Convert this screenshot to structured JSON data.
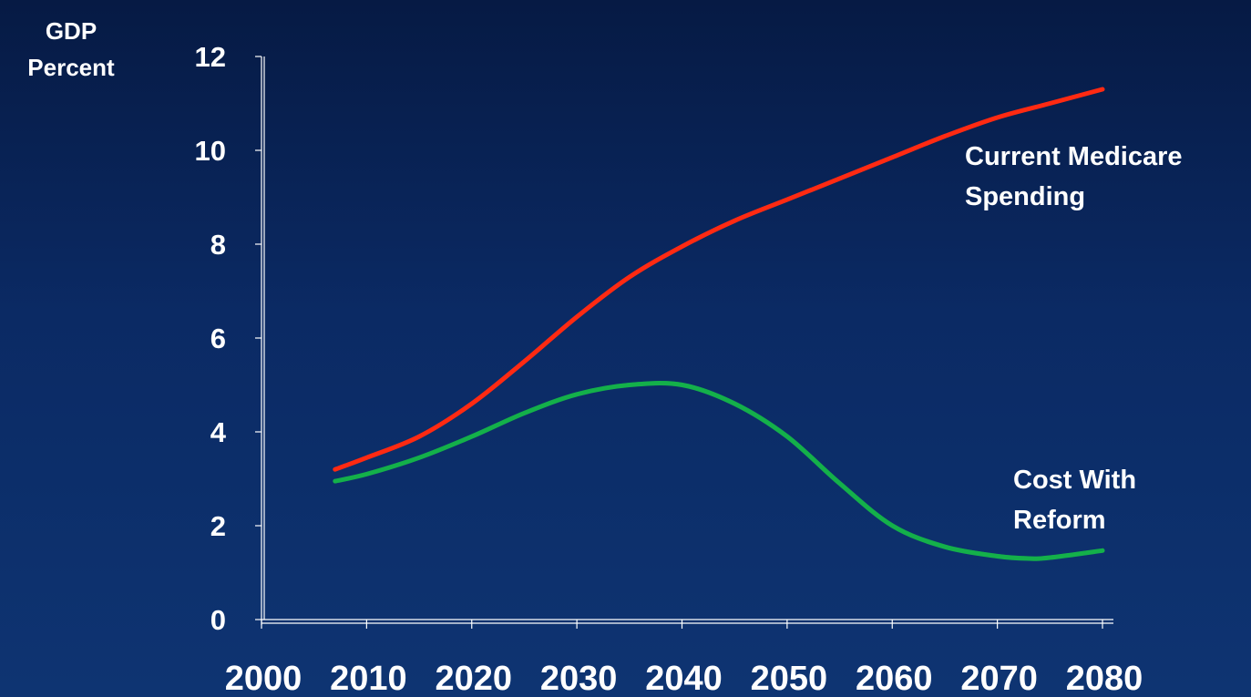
{
  "chart_data": {
    "type": "line",
    "ylabel_lines": [
      "GDP",
      "Percent"
    ],
    "ylim": [
      0,
      12
    ],
    "yticks": [
      0,
      2,
      4,
      6,
      8,
      10,
      12
    ],
    "xlim": [
      2000,
      2080
    ],
    "xticks": [
      2000,
      2010,
      2020,
      2030,
      2040,
      2050,
      2060,
      2070,
      2080
    ],
    "grid": false,
    "legend": "direct labels at right end of lines",
    "series": [
      {
        "name_lines": [
          "Current Medicare",
          "Spending"
        ],
        "color": "#ff2a12",
        "x": [
          2007,
          2010,
          2015,
          2020,
          2025,
          2030,
          2035,
          2040,
          2045,
          2050,
          2055,
          2060,
          2065,
          2070,
          2075,
          2080
        ],
        "y": [
          3.2,
          3.45,
          3.9,
          4.6,
          5.5,
          6.45,
          7.3,
          7.95,
          8.5,
          8.95,
          9.4,
          9.85,
          10.3,
          10.7,
          11.0,
          11.3
        ]
      },
      {
        "name_lines": [
          "Cost With",
          "Reform"
        ],
        "color": "#14b04a",
        "x": [
          2007,
          2010,
          2015,
          2020,
          2025,
          2030,
          2035,
          2040,
          2045,
          2050,
          2055,
          2060,
          2065,
          2070,
          2073,
          2075,
          2080
        ],
        "y": [
          2.95,
          3.1,
          3.45,
          3.9,
          4.4,
          4.8,
          5.0,
          5.0,
          4.6,
          3.9,
          2.9,
          2.0,
          1.55,
          1.35,
          1.3,
          1.32,
          1.47
        ]
      }
    ]
  }
}
